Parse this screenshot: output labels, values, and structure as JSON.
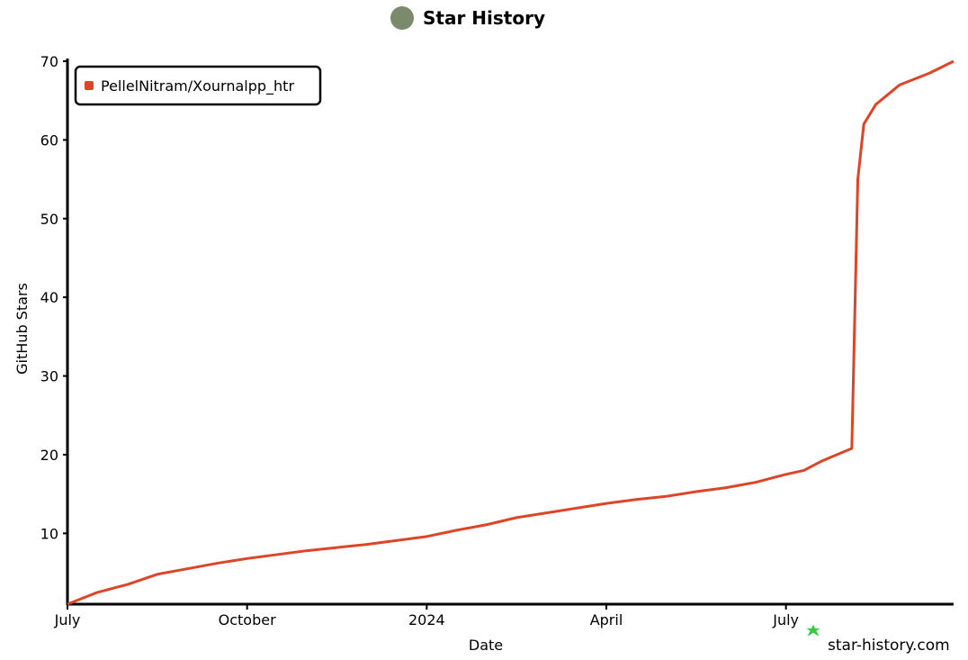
{
  "chart_data": {
    "type": "line",
    "title": "Star History",
    "x_label": "Date",
    "y_label": "GitHub Stars",
    "watermark": "star-history.com",
    "x": [
      0,
      0.5,
      1,
      1.5,
      2,
      2.5,
      3,
      3.5,
      4,
      4.5,
      5,
      5.5,
      6,
      6.5,
      7,
      7.5,
      8,
      8.5,
      9,
      9.5,
      10,
      10.5,
      11,
      11.5,
      12,
      12.3,
      12.6,
      13.1,
      13.2,
      13.3,
      13.5,
      13.9,
      14.4,
      14.8
    ],
    "series": [
      {
        "name": "PellelNitram/Xournalpp_htr",
        "color": "#dd4528",
        "values": [
          1,
          2.5,
          3.5,
          4.8,
          5.5,
          6.2,
          6.8,
          7.3,
          7.8,
          8.2,
          8.6,
          9.1,
          9.6,
          10.4,
          11.1,
          12.0,
          12.6,
          13.2,
          13.8,
          14.3,
          14.7,
          15.3,
          15.8,
          16.5,
          17.5,
          18,
          19.2,
          20.8,
          55,
          62,
          64.5,
          67,
          68.5,
          70
        ]
      }
    ],
    "xlim": [
      0,
      14.8
    ],
    "xticks": [
      {
        "value": 0,
        "label": "July"
      },
      {
        "value": 3,
        "label": "October"
      },
      {
        "value": 6,
        "label": "2024"
      },
      {
        "value": 9,
        "label": "April"
      },
      {
        "value": 12,
        "label": "July"
      }
    ],
    "ylim": [
      1,
      70
    ],
    "yticks": [
      10,
      20,
      30,
      40,
      50,
      60,
      70
    ],
    "legend": "top-left"
  }
}
